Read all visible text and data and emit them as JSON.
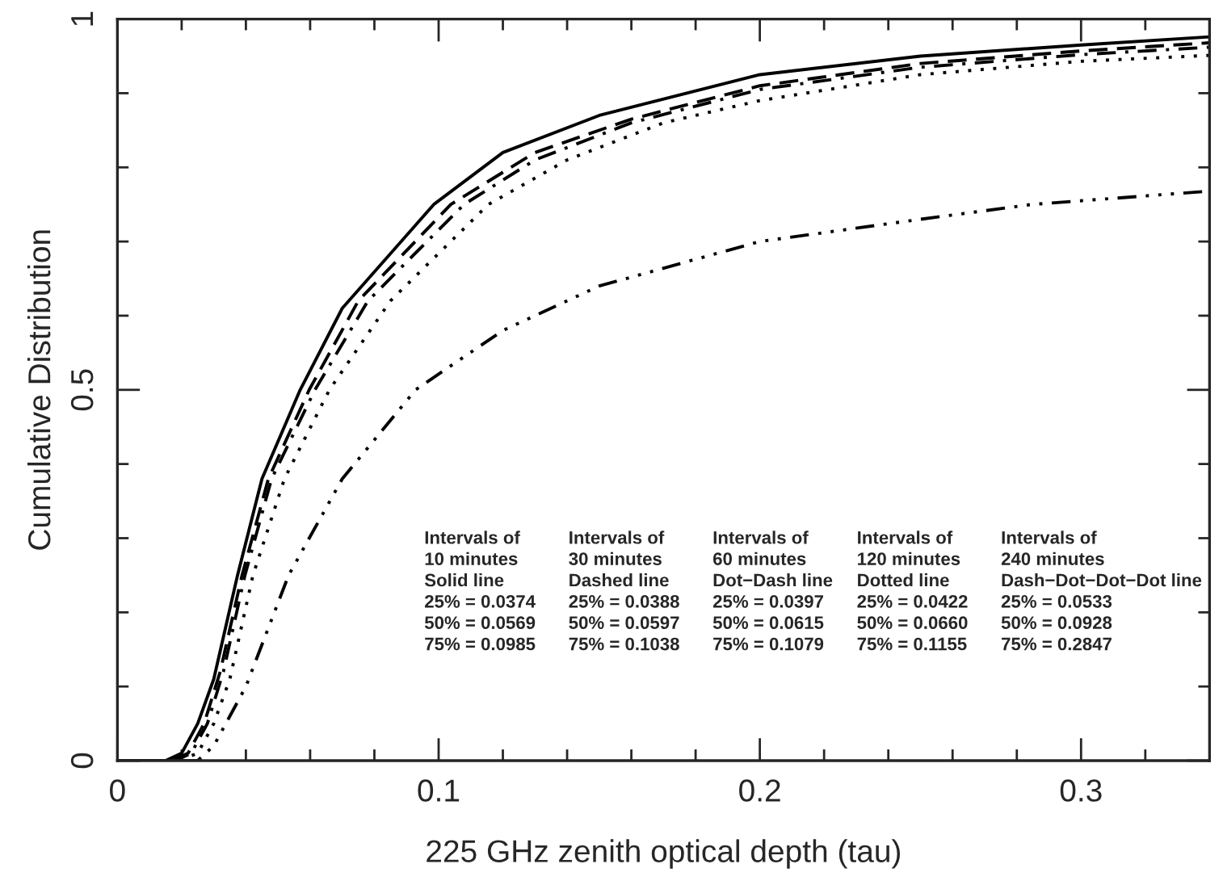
{
  "chart_data": {
    "type": "line",
    "xlabel": "225 GHz zenith optical depth (tau)",
    "ylabel": "Cumulative Distribution",
    "series": [
      {
        "color": "#000000",
        "line_style": "solid",
        "x": [
          0,
          0.015,
          0.02,
          0.025,
          0.03,
          0.0374,
          0.045,
          0.0569,
          0.07,
          0.0985,
          0.12,
          0.15,
          0.2,
          0.25,
          0.3,
          0.34
        ],
        "values": [
          0,
          0,
          0.01,
          0.05,
          0.11,
          0.25,
          0.38,
          0.5,
          0.61,
          0.75,
          0.82,
          0.87,
          0.925,
          0.95,
          0.965,
          0.976
        ]
      },
      {
        "color": "#000000",
        "line_style": "dashed",
        "x": [
          0,
          0.017,
          0.022,
          0.027,
          0.032,
          0.0388,
          0.047,
          0.0597,
          0.075,
          0.1038,
          0.13,
          0.16,
          0.2,
          0.25,
          0.3,
          0.34
        ],
        "values": [
          0,
          0,
          0.01,
          0.05,
          0.12,
          0.25,
          0.38,
          0.5,
          0.62,
          0.75,
          0.82,
          0.865,
          0.91,
          0.94,
          0.957,
          0.968
        ]
      },
      {
        "color": "#000000",
        "line_style": "dashdot",
        "x": [
          0,
          0.018,
          0.023,
          0.028,
          0.033,
          0.0397,
          0.048,
          0.0615,
          0.078,
          0.1079,
          0.13,
          0.16,
          0.2,
          0.25,
          0.3,
          0.34
        ],
        "values": [
          0,
          0,
          0.01,
          0.05,
          0.12,
          0.25,
          0.38,
          0.5,
          0.62,
          0.75,
          0.81,
          0.86,
          0.905,
          0.935,
          0.952,
          0.962
        ]
      },
      {
        "color": "#000000",
        "line_style": "dotted",
        "x": [
          0,
          0.019,
          0.025,
          0.03,
          0.035,
          0.0422,
          0.052,
          0.066,
          0.085,
          0.1155,
          0.14,
          0.17,
          0.2,
          0.25,
          0.3,
          0.34
        ],
        "values": [
          0,
          0,
          0.01,
          0.05,
          0.11,
          0.25,
          0.38,
          0.5,
          0.62,
          0.75,
          0.81,
          0.86,
          0.89,
          0.925,
          0.943,
          0.951
        ]
      },
      {
        "color": "#000000",
        "line_style": "dashdotdotdot",
        "x": [
          0,
          0.025,
          0.03,
          0.04,
          0.0533,
          0.07,
          0.0928,
          0.12,
          0.15,
          0.2,
          0.25,
          0.2847,
          0.34
        ],
        "values": [
          0,
          0,
          0.02,
          0.1,
          0.25,
          0.38,
          0.5,
          0.58,
          0.64,
          0.7,
          0.73,
          0.75,
          0.768
        ]
      }
    ],
    "xlim": [
      0,
      0.34
    ],
    "ylim": [
      0,
      1
    ],
    "xticks": [
      {
        "value": 0,
        "label": "0"
      },
      {
        "value": 0.02,
        "label": null
      },
      {
        "value": 0.04,
        "label": null
      },
      {
        "value": 0.06,
        "label": null
      },
      {
        "value": 0.08,
        "label": null
      },
      {
        "value": 0.1,
        "label": "0.1"
      },
      {
        "value": 0.12,
        "label": null
      },
      {
        "value": 0.14,
        "label": null
      },
      {
        "value": 0.16,
        "label": null
      },
      {
        "value": 0.18,
        "label": null
      },
      {
        "value": 0.2,
        "label": "0.2"
      },
      {
        "value": 0.22,
        "label": null
      },
      {
        "value": 0.24,
        "label": null
      },
      {
        "value": 0.26,
        "label": null
      },
      {
        "value": 0.28,
        "label": null
      },
      {
        "value": 0.3,
        "label": "0.3"
      },
      {
        "value": 0.32,
        "label": null
      }
    ],
    "yticks": [
      {
        "value": 0,
        "label": "0"
      },
      {
        "value": 0.1,
        "label": null
      },
      {
        "value": 0.2,
        "label": null
      },
      {
        "value": 0.3,
        "label": null
      },
      {
        "value": 0.4,
        "label": null
      },
      {
        "value": 0.5,
        "label": "0.5"
      },
      {
        "value": 0.6,
        "label": null
      },
      {
        "value": 0.7,
        "label": null
      },
      {
        "value": 0.8,
        "label": null
      },
      {
        "value": 0.9,
        "label": null
      },
      {
        "value": 1,
        "label": "1"
      }
    ],
    "grid": false,
    "legend": false,
    "annotations": [
      "Intervals of\n10 minutes\nSolid line\n25% = 0.0374\n50% = 0.0569\n75% = 0.0985",
      "Intervals of\n30 minutes\nDashed line\n25% = 0.0388\n50% = 0.0597\n75% = 0.1038",
      "Intervals of\n60 minutes\nDot−Dash line\n25% = 0.0397\n50% = 0.0615\n75% = 0.1079",
      "Intervals of\n120 minutes\nDotted line\n25% = 0.0422\n50% = 0.0660\n75% = 0.1155",
      "Intervals of\n240 minutes\nDash−Dot−Dot−Dot line\n25% = 0.0533\n50% = 0.0928\n75% = 0.2847"
    ]
  }
}
